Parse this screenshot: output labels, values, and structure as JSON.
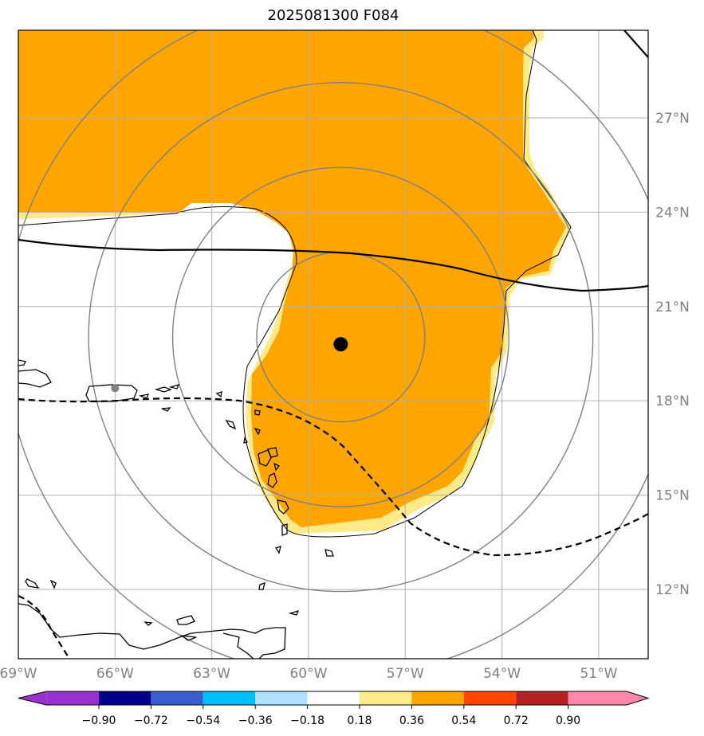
{
  "title": "2025081300 F084",
  "map": {
    "lon_range": [
      -69.0,
      -49.0
    ],
    "lat_range": [
      10.0,
      30.0
    ],
    "lon_ticks": [
      {
        "value": -69,
        "label": "69°W"
      },
      {
        "value": -66,
        "label": "66°W"
      },
      {
        "value": -63,
        "label": "63°W"
      },
      {
        "value": -60,
        "label": "60°W"
      },
      {
        "value": -57,
        "label": "57°W"
      },
      {
        "value": -54,
        "label": "54°W"
      },
      {
        "value": -51,
        "label": "51°W"
      }
    ],
    "lat_ticks": [
      {
        "value": 12,
        "label": "12°N"
      },
      {
        "value": 15,
        "label": "15°N"
      },
      {
        "value": 18,
        "label": "18°N"
      },
      {
        "value": 21,
        "label": "21°N"
      },
      {
        "value": 24,
        "label": "24°N"
      },
      {
        "value": 27,
        "label": "27°N"
      }
    ],
    "grid": true,
    "storm_center": {
      "lon": -59.0,
      "lat": 19.8
    },
    "city_marker": {
      "lon": -66.0,
      "lat": 18.4
    },
    "range_rings_km": [
      300,
      600,
      900,
      1200
    ],
    "colors": {
      "positive_fill": "#ffa500",
      "positive_edge": "#ffea8a",
      "solid_line": "#000000",
      "dashed_line": "#000000",
      "rings": "#808080",
      "grid": "#b0b0b0"
    }
  },
  "colorbar": {
    "colors": [
      "#9932cc",
      "#00008b",
      "#3a5fcd",
      "#00bfff",
      "#b0e2ff",
      "#ffffff",
      "#ffea8a",
      "#ffa500",
      "#ff4500",
      "#b22222",
      "#ff88aa"
    ],
    "tick_labels": [
      "−0.90",
      "−0.72",
      "−0.54",
      "−0.36",
      "−0.18",
      "0.18",
      "0.36",
      "0.54",
      "0.72",
      "0.90"
    ]
  }
}
